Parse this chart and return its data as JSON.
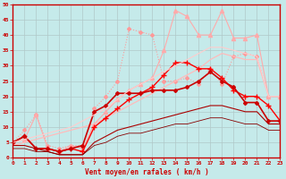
{
  "xlabel": "Vent moyen/en rafales ( km/h )",
  "xlim": [
    0,
    23
  ],
  "ylim": [
    0,
    50
  ],
  "yticks": [
    0,
    5,
    10,
    15,
    20,
    25,
    30,
    35,
    40,
    45,
    50
  ],
  "xticks": [
    0,
    1,
    2,
    3,
    4,
    5,
    6,
    7,
    8,
    9,
    10,
    11,
    12,
    13,
    14,
    15,
    16,
    17,
    18,
    19,
    20,
    21,
    22,
    23
  ],
  "background_color": "#c5eaea",
  "grid_color": "#b0c8c8",
  "lines": [
    {
      "x": [
        0,
        1,
        2,
        3,
        4,
        5,
        6,
        7,
        8,
        9,
        10,
        11,
        12,
        13,
        14,
        15,
        16,
        17,
        18,
        19,
        20,
        21,
        22,
        23
      ],
      "y": [
        5,
        9,
        14,
        4,
        3,
        4,
        4,
        16,
        20,
        25,
        42,
        41,
        40,
        25,
        25,
        26,
        24,
        29,
        24,
        33,
        34,
        33,
        20,
        20
      ],
      "color": "#ff9999",
      "marker": "D",
      "markersize": 2,
      "lw": 0.8,
      "linestyle": "dotted"
    },
    {
      "x": [
        0,
        1,
        2,
        3,
        4,
        5,
        6,
        7,
        8,
        9,
        10,
        11,
        12,
        13,
        14,
        15,
        16,
        17,
        18,
        19,
        20,
        21,
        22,
        23
      ],
      "y": [
        5,
        6,
        14,
        3,
        2,
        4,
        3,
        11,
        15,
        19,
        22,
        24,
        26,
        35,
        48,
        46,
        40,
        40,
        48,
        39,
        39,
        40,
        20,
        20
      ],
      "color": "#ffaaaa",
      "marker": "^",
      "markersize": 3,
      "lw": 0.8,
      "linestyle": "solid"
    },
    {
      "x": [
        0,
        1,
        2,
        3,
        4,
        5,
        6,
        7,
        8,
        9,
        10,
        11,
        12,
        13,
        14,
        15,
        16,
        17,
        18,
        19,
        20,
        21,
        22,
        23
      ],
      "y": [
        4,
        5,
        6,
        7,
        8,
        9,
        10,
        11,
        13,
        15,
        17,
        19,
        21,
        23,
        25,
        27,
        29,
        32,
        34,
        33,
        32,
        32,
        20,
        20
      ],
      "color": "#ffbbbb",
      "marker": null,
      "lw": 0.9,
      "linestyle": "solid"
    },
    {
      "x": [
        0,
        1,
        2,
        3,
        4,
        5,
        6,
        7,
        8,
        9,
        10,
        11,
        12,
        13,
        14,
        15,
        16,
        17,
        18,
        19,
        20,
        21,
        22,
        23
      ],
      "y": [
        5,
        7,
        3,
        3,
        2,
        3,
        2,
        10,
        13,
        16,
        19,
        21,
        23,
        27,
        31,
        31,
        29,
        29,
        26,
        22,
        20,
        20,
        17,
        12
      ],
      "color": "#ff0000",
      "marker": "+",
      "markersize": 4,
      "lw": 1.0,
      "linestyle": "solid"
    },
    {
      "x": [
        0,
        1,
        2,
        3,
        4,
        5,
        6,
        7,
        8,
        9,
        10,
        11,
        12,
        13,
        14,
        15,
        16,
        17,
        18,
        19,
        20,
        21,
        22,
        23
      ],
      "y": [
        5,
        7,
        3,
        3,
        2,
        3,
        4,
        15,
        17,
        21,
        21,
        21,
        22,
        22,
        22,
        23,
        25,
        28,
        25,
        23,
        18,
        18,
        12,
        12
      ],
      "color": "#cc0000",
      "marker": "D",
      "markersize": 2,
      "lw": 1.2,
      "linestyle": "solid"
    },
    {
      "x": [
        0,
        1,
        2,
        3,
        4,
        5,
        6,
        7,
        8,
        9,
        10,
        11,
        12,
        13,
        14,
        15,
        16,
        17,
        18,
        19,
        20,
        21,
        22,
        23
      ],
      "y": [
        4,
        4,
        3,
        2,
        1,
        1,
        1,
        5,
        7,
        9,
        10,
        11,
        12,
        13,
        14,
        15,
        16,
        17,
        17,
        16,
        15,
        15,
        11,
        11
      ],
      "color": "#aa0000",
      "marker": null,
      "lw": 0.8,
      "linestyle": "solid"
    },
    {
      "x": [
        0,
        1,
        2,
        3,
        4,
        5,
        6,
        7,
        8,
        9,
        10,
        11,
        12,
        13,
        14,
        15,
        16,
        17,
        18,
        19,
        20,
        21,
        22,
        23
      ],
      "y": [
        3,
        3,
        2,
        2,
        1,
        1,
        1,
        4,
        5,
        7,
        8,
        8,
        9,
        10,
        11,
        11,
        12,
        13,
        13,
        12,
        11,
        11,
        9,
        9
      ],
      "color": "#880000",
      "marker": null,
      "lw": 0.6,
      "linestyle": "solid"
    },
    {
      "x": [
        0,
        1,
        2,
        3,
        4,
        5,
        6,
        7,
        8,
        9,
        10,
        11,
        12,
        13,
        14,
        15,
        16,
        17,
        18,
        19,
        20,
        21,
        22,
        23
      ],
      "y": [
        5,
        6,
        7,
        8,
        9,
        10,
        12,
        14,
        16,
        19,
        22,
        24,
        26,
        28,
        30,
        32,
        34,
        36,
        36,
        35,
        34,
        33,
        20,
        20
      ],
      "color": "#ffcccc",
      "marker": null,
      "lw": 0.8,
      "linestyle": "solid"
    }
  ]
}
